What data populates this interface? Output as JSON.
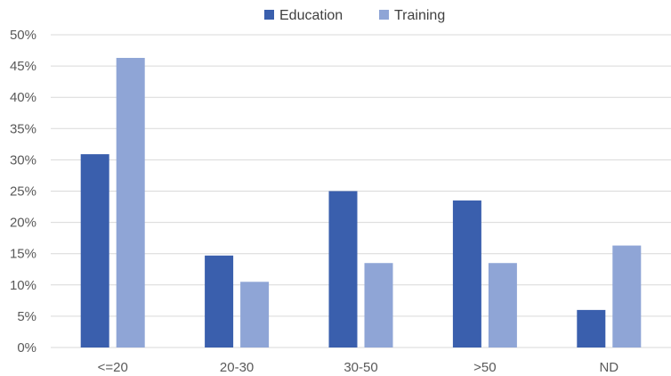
{
  "chart_data": {
    "type": "bar",
    "categories": [
      "<=20",
      "20-30",
      "30-50",
      ">50",
      "ND"
    ],
    "series": [
      {
        "name": "Education",
        "values": [
          30.9,
          14.7,
          25.0,
          23.5,
          6.0
        ],
        "color": "#3a5fad"
      },
      {
        "name": "Training",
        "values": [
          46.3,
          10.5,
          13.5,
          13.5,
          16.3
        ],
        "color": "#8fa5d6"
      }
    ],
    "ylim": [
      0,
      50
    ],
    "yticks": [
      "0%",
      "5%",
      "10%",
      "15%",
      "20%",
      "25%",
      "30%",
      "35%",
      "40%",
      "45%",
      "50%"
    ],
    "grid": true,
    "legend_position": "top-center",
    "gridline_color": "#d9d9d9"
  }
}
